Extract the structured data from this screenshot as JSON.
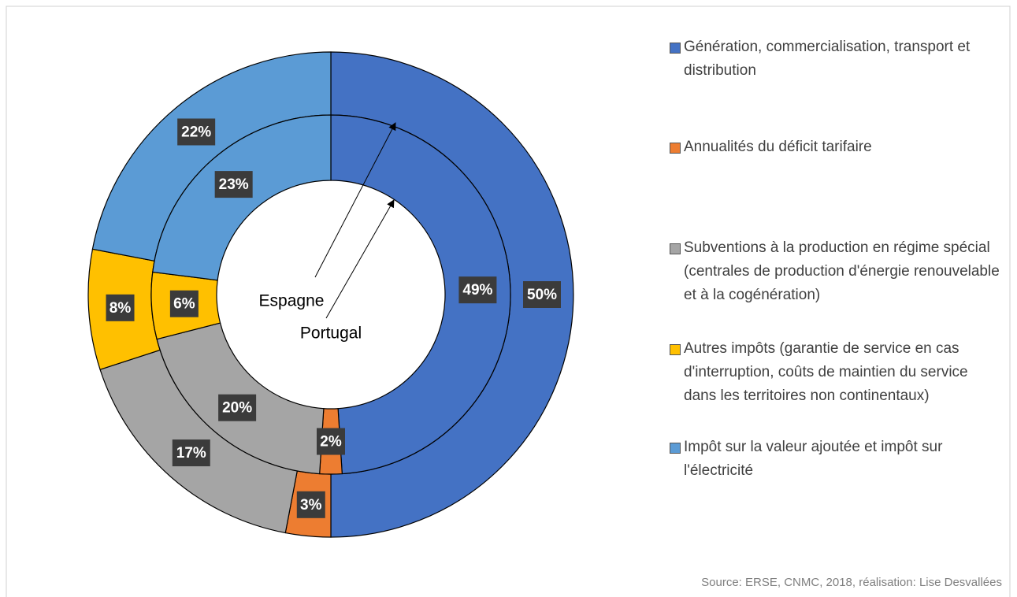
{
  "chart_data": {
    "type": "donut",
    "categories": [
      "Génération, commercialisation, transport et distribution",
      "Annualités du déficit tarifaire",
      "Subventions à la production en régime spécial (centrales de production d'énergie renouvelable et à la cogénération)",
      "Autres impôts (garantie de service en cas d'interruption, coûts de maintien du service dans les territoires non continentaux)",
      "Impôt sur la valeur ajoutée et impôt sur l'électricité"
    ],
    "colors": [
      "#4472c4",
      "#ed7d31",
      "#a5a5a5",
      "#ffc000",
      "#5b9bd5"
    ],
    "series": [
      {
        "name": "Espagne",
        "values": [
          50,
          3,
          17,
          8,
          22
        ],
        "value_labels": [
          "50%",
          "3%",
          "17%",
          "8%",
          "22%"
        ]
      },
      {
        "name": "Portugal",
        "values": [
          49,
          2,
          20,
          6,
          23
        ],
        "value_labels": [
          "49%",
          "2%",
          "20%",
          "6%",
          "23%"
        ]
      }
    ],
    "source": "Source: ERSE, CNMC, 2018, réalisation: Lise Desvallées"
  }
}
